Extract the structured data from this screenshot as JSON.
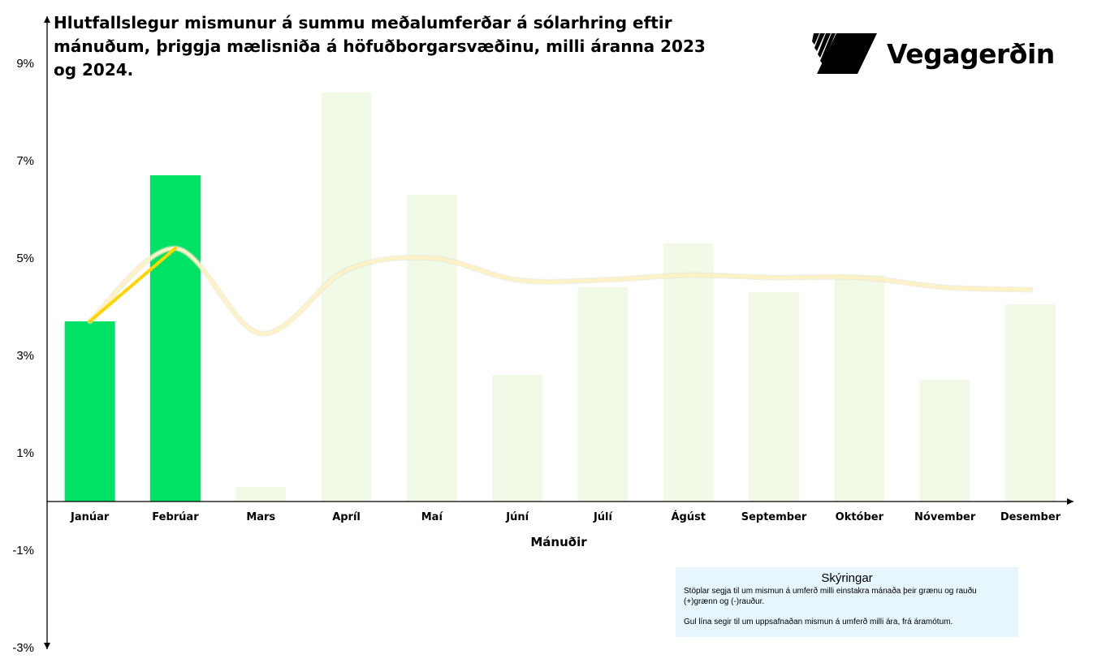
{
  "title": "Hlutfallslegur mismunur á summu meðalumferðar á sólarhring eftir mánuðum, þriggja mælisniða á höfuðborgarsvæðinu, milli áranna 2023 og 2024.",
  "brand": {
    "name": "Vegagerðin",
    "logo_icon": "vegagerdin-stripes-logo"
  },
  "legend": {
    "title": "Skýringar",
    "text1": "Stöplar segja til um mismun á umferð milli einstakra mánaða  þeir grænu og rauðu (+)grænn og (-)rauður.",
    "text2": "Gul lína segir til um uppsafnaðan mismun á umferð milli ára, frá áramótum."
  },
  "colors": {
    "actual_bar": "#00e266",
    "future_bar": "#f1fae6",
    "line_active": "#ffd500",
    "line_future": "#fff2c4",
    "axis": "#000000"
  },
  "chart_data": {
    "type": "bar",
    "title": "Hlutfallslegur mismunur á summu meðalumferðar á sólarhring eftir mánuðum, þriggja mælisniða á höfuðborgarsvæðinu, milli áranna 2023 og 2024.",
    "xlabel": "Mánuðir",
    "ylabel": "",
    "ylim": [
      -3,
      9
    ],
    "yticks": [
      "9%",
      "7%",
      "5%",
      "3%",
      "1%",
      "-1%",
      "-3%"
    ],
    "ytick_values": [
      9,
      7,
      5,
      3,
      1,
      -1,
      -3
    ],
    "categories": [
      "Janúar",
      "Febrúar",
      "Mars",
      "Apríl",
      "Maí",
      "Júní",
      "Júlí",
      "Ágúst",
      "September",
      "Október",
      "Nóvember",
      "Desember"
    ],
    "series": [
      {
        "type": "bar",
        "values": [
          3.7,
          6.7,
          0.3,
          8.4,
          6.3,
          2.6,
          4.4,
          5.3,
          4.3,
          4.65,
          2.5,
          4.05
        ],
        "status": [
          "actual",
          "actual",
          "future",
          "future",
          "future",
          "future",
          "future",
          "future",
          "future",
          "future",
          "future",
          "future"
        ]
      },
      {
        "type": "line",
        "values": [
          3.7,
          5.2,
          3.45,
          4.75,
          5.0,
          4.55,
          4.55,
          4.65,
          4.6,
          4.6,
          4.4,
          4.35
        ],
        "active_points": 2
      }
    ],
    "grid": false,
    "legend": "bottom-right"
  }
}
